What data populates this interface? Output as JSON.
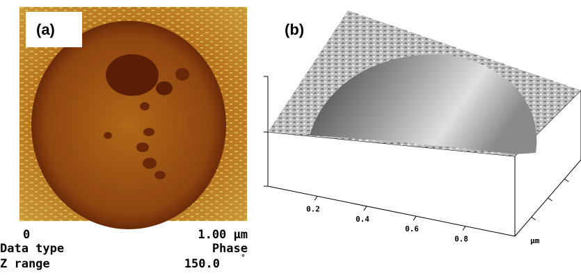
{
  "panel_a": {
    "label": "(a)",
    "scale_start": "0",
    "scale_end": "1.00 µm",
    "data_type_label": "Data type",
    "data_type_value": "Phase",
    "z_range_label": "Z range",
    "z_range_value": "150.0",
    "z_range_unit": "°"
  },
  "panel_b": {
    "label": "(b)",
    "axis_ticks": [
      "0.2",
      "0.4",
      "0.6",
      "0.8"
    ],
    "axis_unit": "µm"
  }
}
